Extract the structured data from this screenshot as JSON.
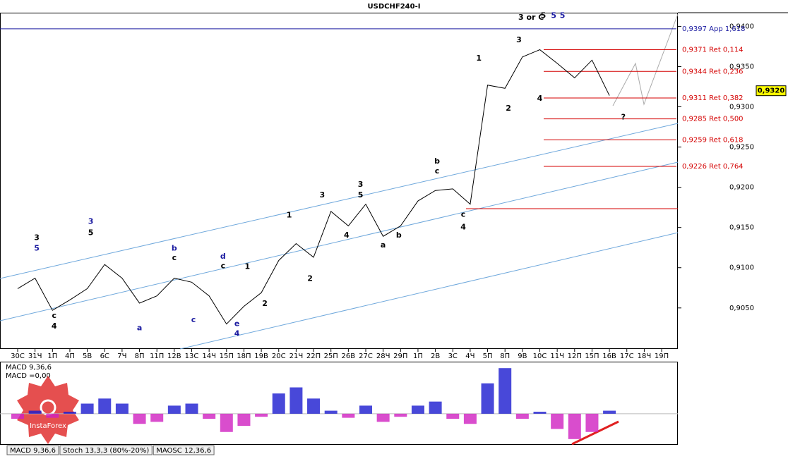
{
  "chart_data": [
    {
      "type": "line",
      "title": "USDCHF240-I",
      "color": "#000000",
      "categories": [
        "30С",
        "31Ч",
        "1П",
        "4П",
        "5В",
        "6С",
        "7Ч",
        "8П",
        "11П",
        "12В",
        "13С",
        "14Ч",
        "15П",
        "18П",
        "19В",
        "20С",
        "21Ч",
        "22П",
        "25П",
        "26В",
        "27С",
        "28Ч",
        "29П",
        "1П",
        "2В",
        "3С",
        "4Ч",
        "5П",
        "8П",
        "9В",
        "10С",
        "11Ч",
        "12П",
        "15П",
        "16В",
        "17С",
        "18Ч",
        "19П"
      ],
      "values": [
        0.9074,
        0.9087,
        0.9047,
        0.906,
        0.9074,
        0.9104,
        0.9087,
        0.9056,
        0.9065,
        0.9087,
        0.9082,
        0.9065,
        0.903,
        0.9052,
        0.9069,
        0.9109,
        0.913,
        0.9113,
        0.917,
        0.9152,
        0.9179,
        0.9139,
        0.9152,
        0.9183,
        0.9196,
        0.9198,
        0.9179,
        0.9327,
        0.9323,
        0.9362,
        0.9371,
        0.9354,
        0.9336,
        0.9358,
        0.9314,
        null,
        null,
        null
      ],
      "ylim": [
        0.8999,
        0.9417
      ],
      "yticks": [
        {
          "value": 0.905,
          "label": "0,9050"
        },
        {
          "value": 0.91,
          "label": "0,9100"
        },
        {
          "value": 0.915,
          "label": "0,9150"
        },
        {
          "value": 0.92,
          "label": "0,9200"
        },
        {
          "value": 0.925,
          "label": "0,9250"
        },
        {
          "value": 0.93,
          "label": "0,9300"
        },
        {
          "value": 0.935,
          "label": "0,9350"
        },
        {
          "value": 0.94,
          "label": "0,9400"
        }
      ],
      "current_price": {
        "value": 0.932,
        "label": "0,9320"
      },
      "levels": [
        {
          "value": 0.9397,
          "label": "0,9397 App 1,618",
          "color": "#1a1aa0"
        },
        {
          "value": 0.9371,
          "label": "0,9371 Ret 0,114",
          "color": "#d40000"
        },
        {
          "value": 0.9344,
          "label": "0,9344 Ret 0,236",
          "color": "#d40000"
        },
        {
          "value": 0.9311,
          "label": "0,9311 Ret 0,382",
          "color": "#d40000"
        },
        {
          "value": 0.9285,
          "label": "0,9285 Ret 0,500",
          "color": "#d40000"
        },
        {
          "value": 0.9259,
          "label": "0,9259 Ret 0,618",
          "color": "#d40000"
        },
        {
          "value": 0.9226,
          "label": "0,9226 Ret 0,764",
          "color": "#d40000"
        }
      ],
      "annotations": [
        {
          "text": "3 or C",
          "x": 29.5,
          "y": 0.9411,
          "color": "#000000"
        },
        {
          "text": "5",
          "x": 30.2,
          "y": 0.9413,
          "color": "#000000"
        },
        {
          "text": "5",
          "x": 30.8,
          "y": 0.9413,
          "color": "#1a1aa0"
        },
        {
          "text": "5",
          "x": 31.3,
          "y": 0.9413,
          "color": "#1a1aa0"
        },
        {
          "text": "1",
          "x": 26.5,
          "y": 0.936,
          "color": "#000000"
        },
        {
          "text": "2",
          "x": 28.2,
          "y": 0.9298,
          "color": "#000000"
        },
        {
          "text": "3",
          "x": 28.8,
          "y": 0.9383,
          "color": "#000000"
        },
        {
          "text": "4",
          "x": 30,
          "y": 0.931,
          "color": "#000000"
        },
        {
          "text": "?",
          "x": 34.8,
          "y": 0.9287,
          "color": "#000000"
        },
        {
          "text": "b",
          "x": 24.1,
          "y": 0.9232,
          "color": "#000000"
        },
        {
          "text": "c",
          "x": 24.1,
          "y": 0.922,
          "color": "#000000"
        },
        {
          "text": "c",
          "x": 25.6,
          "y": 0.9166,
          "color": "#000000"
        },
        {
          "text": "4",
          "x": 25.6,
          "y": 0.915,
          "color": "#000000"
        },
        {
          "text": "3",
          "x": 19.7,
          "y": 0.9203,
          "color": "#000000"
        },
        {
          "text": "5",
          "x": 19.7,
          "y": 0.919,
          "color": "#000000"
        },
        {
          "text": "3",
          "x": 17.5,
          "y": 0.919,
          "color": "#000000"
        },
        {
          "text": "4",
          "x": 18.9,
          "y": 0.914,
          "color": "#000000"
        },
        {
          "text": "a",
          "x": 21,
          "y": 0.9128,
          "color": "#000000"
        },
        {
          "text": "b",
          "x": 21.9,
          "y": 0.914,
          "color": "#000000"
        },
        {
          "text": "1",
          "x": 15.6,
          "y": 0.9165,
          "color": "#000000"
        },
        {
          "text": "2",
          "x": 16.8,
          "y": 0.9086,
          "color": "#000000"
        },
        {
          "text": "1",
          "x": 13.2,
          "y": 0.9101,
          "color": "#000000"
        },
        {
          "text": "2",
          "x": 14.2,
          "y": 0.9055,
          "color": "#000000"
        },
        {
          "text": "d",
          "x": 11.8,
          "y": 0.9114,
          "color": "#1a1aa0"
        },
        {
          "text": "c",
          "x": 11.8,
          "y": 0.9102,
          "color": "#000000"
        },
        {
          "text": "e",
          "x": 12.6,
          "y": 0.903,
          "color": "#1a1aa0"
        },
        {
          "text": "4",
          "x": 12.6,
          "y": 0.9018,
          "color": "#1a1aa0"
        },
        {
          "text": "b",
          "x": 9,
          "y": 0.9124,
          "color": "#1a1aa0"
        },
        {
          "text": "c",
          "x": 9,
          "y": 0.9112,
          "color": "#000000"
        },
        {
          "text": "c",
          "x": 10.1,
          "y": 0.9035,
          "color": "#1a1aa0"
        },
        {
          "text": "3",
          "x": 4.2,
          "y": 0.9157,
          "color": "#1a1aa0"
        },
        {
          "text": "5",
          "x": 4.2,
          "y": 0.9143,
          "color": "#000000"
        },
        {
          "text": "a",
          "x": 7,
          "y": 0.9025,
          "color": "#1a1aa0"
        },
        {
          "text": "3",
          "x": 1.1,
          "y": 0.9137,
          "color": "#000000"
        },
        {
          "text": "5",
          "x": 1.1,
          "y": 0.9124,
          "color": "#1a1aa0"
        },
        {
          "text": "c",
          "x": 2.1,
          "y": 0.904,
          "color": "#000000"
        },
        {
          "text": "4",
          "x": 2.1,
          "y": 0.9027,
          "color": "#000000"
        }
      ]
    },
    {
      "type": "bar",
      "title": "MACD 9,36,6",
      "subtitle": "MACD =0,00",
      "ylim": [
        -3,
        5
      ],
      "values": [
        -0.5,
        0.3,
        -0.4,
        0.2,
        1.0,
        1.5,
        1.0,
        -1.0,
        -0.8,
        0.8,
        1.0,
        -0.5,
        -1.8,
        -1.2,
        -0.3,
        2.0,
        2.6,
        1.5,
        0.3,
        -0.4,
        0.8,
        -0.8,
        -0.3,
        0.8,
        1.2,
        -0.5,
        -1.0,
        3.0,
        4.5,
        -0.5,
        0.2,
        -1.5,
        -2.5,
        -1.8,
        0.3,
        null,
        null,
        null
      ],
      "colors": {
        "positive": "#1a1ad0",
        "negative": "#d020c0"
      },
      "tabs": [
        "MACD 9,36,6",
        "Stoch 13,3,3 (80%-20%)",
        "MAOSC 12,36,6"
      ],
      "logo": "InstaForex"
    }
  ]
}
